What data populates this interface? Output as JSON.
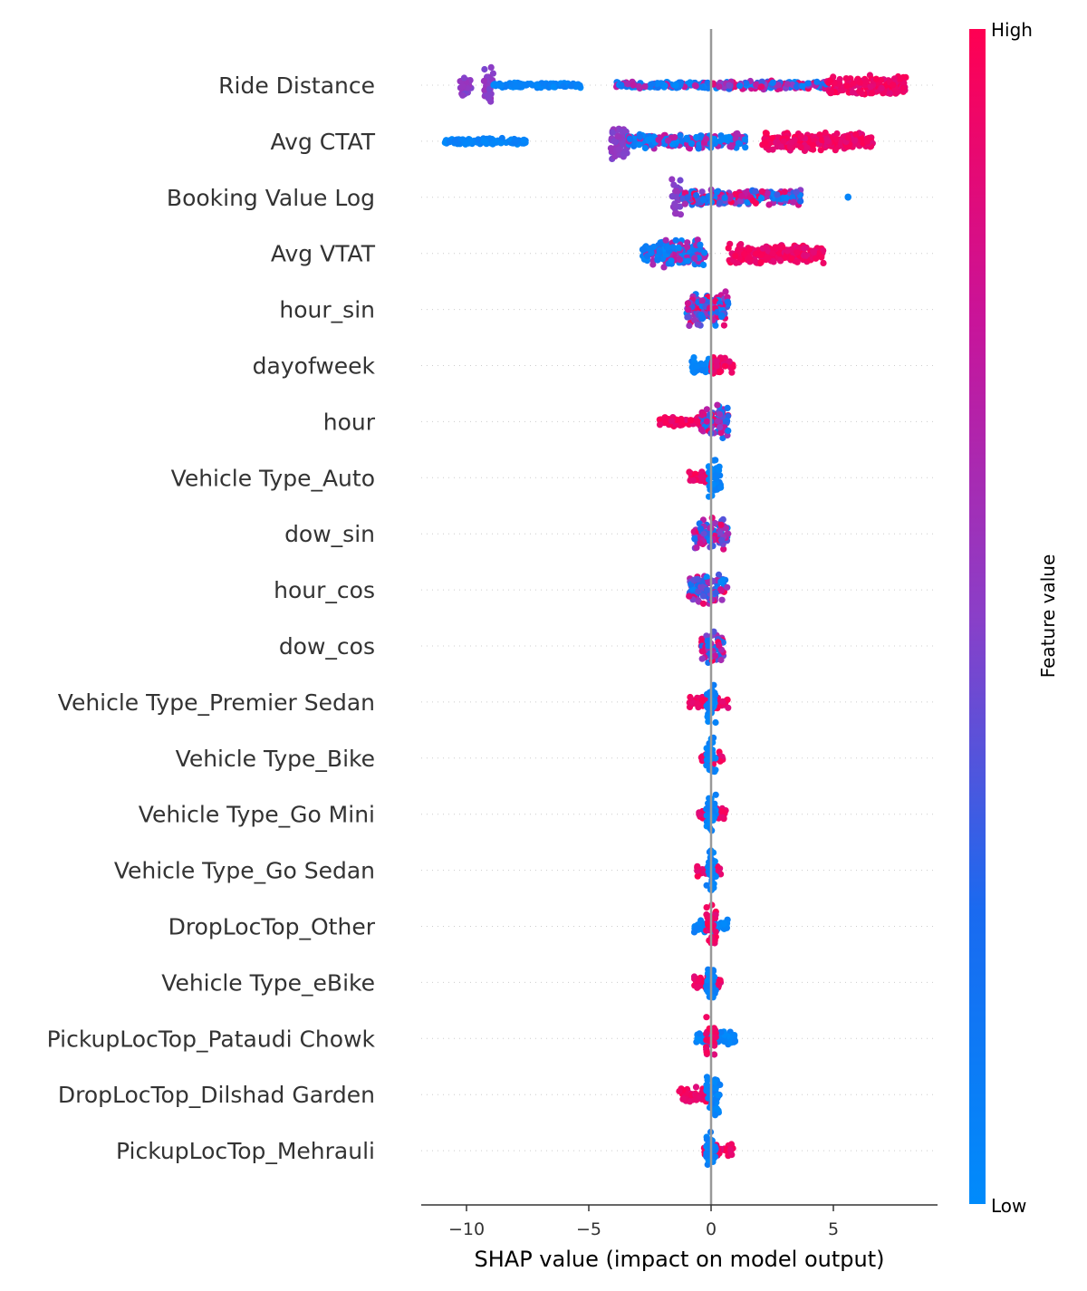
{
  "chart_data": {
    "type": "scatter",
    "subtype": "shap-beeswarm",
    "title": "",
    "xlabel": "SHAP value (impact on model output)",
    "ylabel": "",
    "xlim": [
      -11.8,
      9.2
    ],
    "xticks": [
      -10,
      -5,
      0,
      5
    ],
    "xtick_labels": [
      "−10",
      "−5",
      "0",
      "5"
    ],
    "colorbar": {
      "label": "Feature value",
      "high_label": "High",
      "low_label": "Low",
      "low_color": "#008bfb",
      "high_color": "#ff0052"
    },
    "zero_line_color": "#999999",
    "features": [
      {
        "name": "Ride Distance",
        "segments": [
          {
            "range": [
              -10.3,
              -9.8
            ],
            "width": 0.55,
            "mix": "purple"
          },
          {
            "range": [
              -9.3,
              -8.9
            ],
            "width": 0.9,
            "mix": "purple"
          },
          {
            "range": [
              -8.9,
              -5.3
            ],
            "width": 0.12,
            "mix": "low"
          },
          {
            "range": [
              -3.9,
              0.0
            ],
            "width": 0.15,
            "mix": "lowmix"
          },
          {
            "range": [
              0.0,
              4.8
            ],
            "width": 0.2,
            "mix": "mixed"
          },
          {
            "range": [
              4.8,
              8.0
            ],
            "width": 0.45,
            "mix": "high"
          }
        ]
      },
      {
        "name": "Avg CTAT",
        "segments": [
          {
            "range": [
              -10.9,
              -7.5
            ],
            "width": 0.15,
            "mix": "low"
          },
          {
            "range": [
              -4.1,
              -3.4
            ],
            "width": 0.85,
            "mix": "purple"
          },
          {
            "range": [
              -3.4,
              1.4
            ],
            "width": 0.35,
            "mix": "lowmix"
          },
          {
            "range": [
              2.1,
              6.7
            ],
            "width": 0.45,
            "mix": "high"
          }
        ]
      },
      {
        "name": "Booking Value Log",
        "segments": [
          {
            "range": [
              -1.6,
              -1.2
            ],
            "width": 0.9,
            "mix": "purple"
          },
          {
            "range": [
              -1.2,
              3.7
            ],
            "width": 0.35,
            "mix": "mixed"
          },
          {
            "range": [
              5.6,
              5.6
            ],
            "width": 0.05,
            "mix": "low"
          }
        ]
      },
      {
        "name": "Avg VTAT",
        "segments": [
          {
            "range": [
              -2.8,
              -0.2
            ],
            "width": 0.6,
            "mix": "lowmix"
          },
          {
            "range": [
              0.7,
              4.6
            ],
            "width": 0.45,
            "mix": "high"
          }
        ]
      },
      {
        "name": "hour_sin",
        "segments": [
          {
            "range": [
              -1.0,
              0.7
            ],
            "width": 0.8,
            "mix": "mixed"
          }
        ]
      },
      {
        "name": "dayofweek",
        "segments": [
          {
            "range": [
              -0.8,
              0.0
            ],
            "width": 0.35,
            "mix": "low"
          },
          {
            "range": [
              0.0,
              0.9
            ],
            "width": 0.4,
            "mix": "high"
          }
        ]
      },
      {
        "name": "hour",
        "segments": [
          {
            "range": [
              -2.1,
              -0.4
            ],
            "width": 0.25,
            "mix": "high"
          },
          {
            "range": [
              -0.4,
              0.7
            ],
            "width": 0.8,
            "mix": "mixed"
          }
        ]
      },
      {
        "name": "Vehicle Type_Auto",
        "segments": [
          {
            "range": [
              -0.9,
              -0.1
            ],
            "width": 0.3,
            "mix": "high"
          },
          {
            "range": [
              -0.1,
              0.4
            ],
            "width": 0.9,
            "mix": "low"
          }
        ]
      },
      {
        "name": "dow_sin",
        "segments": [
          {
            "range": [
              -0.7,
              0.7
            ],
            "width": 0.75,
            "mix": "mixed"
          }
        ]
      },
      {
        "name": "hour_cos",
        "segments": [
          {
            "range": [
              -0.9,
              0.7
            ],
            "width": 0.75,
            "mix": "mixed"
          }
        ]
      },
      {
        "name": "dow_cos",
        "segments": [
          {
            "range": [
              -0.4,
              0.5
            ],
            "width": 0.8,
            "mix": "mixed"
          }
        ]
      },
      {
        "name": "Vehicle Type_Premier Sedan",
        "segments": [
          {
            "range": [
              -0.9,
              0.7
            ],
            "width": 0.3,
            "mix": "high"
          },
          {
            "range": [
              -0.2,
              0.2
            ],
            "width": 0.95,
            "mix": "low"
          }
        ]
      },
      {
        "name": "Vehicle Type_Bike",
        "segments": [
          {
            "range": [
              -0.4,
              0.5
            ],
            "width": 0.3,
            "mix": "high"
          },
          {
            "range": [
              -0.2,
              0.2
            ],
            "width": 0.95,
            "mix": "low"
          }
        ]
      },
      {
        "name": "Vehicle Type_Go Mini",
        "segments": [
          {
            "range": [
              -0.5,
              0.6
            ],
            "width": 0.3,
            "mix": "high"
          },
          {
            "range": [
              -0.2,
              0.2
            ],
            "width": 0.95,
            "mix": "low"
          }
        ]
      },
      {
        "name": "Vehicle Type_Go Sedan",
        "segments": [
          {
            "range": [
              -0.6,
              0.5
            ],
            "width": 0.3,
            "mix": "high"
          },
          {
            "range": [
              -0.2,
              0.2
            ],
            "width": 0.95,
            "mix": "low"
          }
        ]
      },
      {
        "name": "DropLocTop_Other",
        "segments": [
          {
            "range": [
              -0.7,
              0.7
            ],
            "width": 0.3,
            "mix": "low"
          },
          {
            "range": [
              -0.2,
              0.2
            ],
            "width": 0.95,
            "mix": "high"
          }
        ]
      },
      {
        "name": "Vehicle Type_eBike",
        "segments": [
          {
            "range": [
              -0.7,
              0.4
            ],
            "width": 0.3,
            "mix": "high"
          },
          {
            "range": [
              -0.2,
              0.2
            ],
            "width": 0.95,
            "mix": "low"
          }
        ]
      },
      {
        "name": "PickupLocTop_Pataudi Chowk",
        "segments": [
          {
            "range": [
              -0.6,
              1.0
            ],
            "width": 0.3,
            "mix": "low"
          },
          {
            "range": [
              -0.2,
              0.2
            ],
            "width": 0.95,
            "mix": "high"
          }
        ]
      },
      {
        "name": "DropLocTop_Dilshad Garden",
        "segments": [
          {
            "range": [
              -1.3,
              -0.1
            ],
            "width": 0.35,
            "mix": "high"
          },
          {
            "range": [
              -0.2,
              0.4
            ],
            "width": 0.95,
            "mix": "low"
          }
        ]
      },
      {
        "name": "PickupLocTop_Mehrauli",
        "segments": [
          {
            "range": [
              -0.3,
              0.9
            ],
            "width": 0.3,
            "mix": "high"
          },
          {
            "range": [
              -0.2,
              0.2
            ],
            "width": 0.95,
            "mix": "low"
          }
        ]
      }
    ]
  }
}
